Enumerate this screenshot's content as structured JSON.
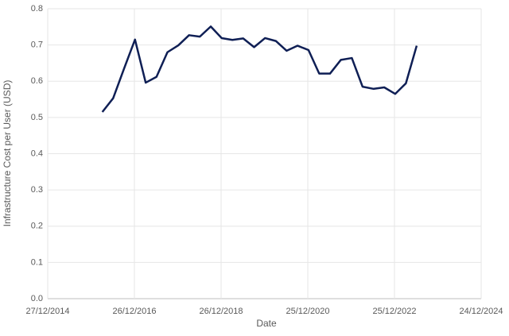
{
  "chart_data": {
    "type": "line",
    "x_label": "Date",
    "y_label": "Infrastructure Cost per User (USD)",
    "x": [
      "2016-03-31",
      "2016-06-30",
      "2016-09-30",
      "2016-12-31",
      "2017-03-31",
      "2017-06-30",
      "2017-09-30",
      "2017-12-31",
      "2018-03-31",
      "2018-06-30",
      "2018-09-30",
      "2018-12-31",
      "2019-03-31",
      "2019-06-30",
      "2019-09-30",
      "2019-12-31",
      "2020-03-31",
      "2020-06-30",
      "2020-09-30",
      "2020-12-31",
      "2021-03-31",
      "2021-06-30",
      "2021-09-30",
      "2021-12-31",
      "2022-03-31",
      "2022-06-30",
      "2022-09-30",
      "2022-12-31",
      "2023-03-31",
      "2023-06-30"
    ],
    "series": [
      {
        "color": "#0f1f55",
        "values": [
          0.515,
          0.553,
          0.635,
          0.715,
          0.596,
          0.612,
          0.68,
          0.699,
          0.727,
          0.723,
          0.751,
          0.719,
          0.714,
          0.718,
          0.694,
          0.719,
          0.711,
          0.684,
          0.698,
          0.686,
          0.621,
          0.621,
          0.659,
          0.664,
          0.585,
          0.579,
          0.583,
          0.565,
          0.594,
          0.698
        ]
      }
    ],
    "xlim": [
      "2014-12-27",
      "2024-12-24"
    ],
    "xticks": [
      {
        "value": "2014-12-27",
        "label": "27/12/2014"
      },
      {
        "value": "2016-12-26",
        "label": "26/12/2016"
      },
      {
        "value": "2018-12-26",
        "label": "26/12/2018"
      },
      {
        "value": "2020-12-25",
        "label": "25/12/2020"
      },
      {
        "value": "2022-12-25",
        "label": "25/12/2022"
      },
      {
        "value": "2024-12-24",
        "label": "24/12/2024"
      }
    ],
    "ylim": [
      0,
      0.8
    ],
    "yticks": [
      {
        "value": 0,
        "label": "0.0"
      },
      0.1,
      0.2,
      0.3,
      0.4,
      0.5,
      0.6,
      0.7,
      0.8
    ],
    "grid": true
  }
}
